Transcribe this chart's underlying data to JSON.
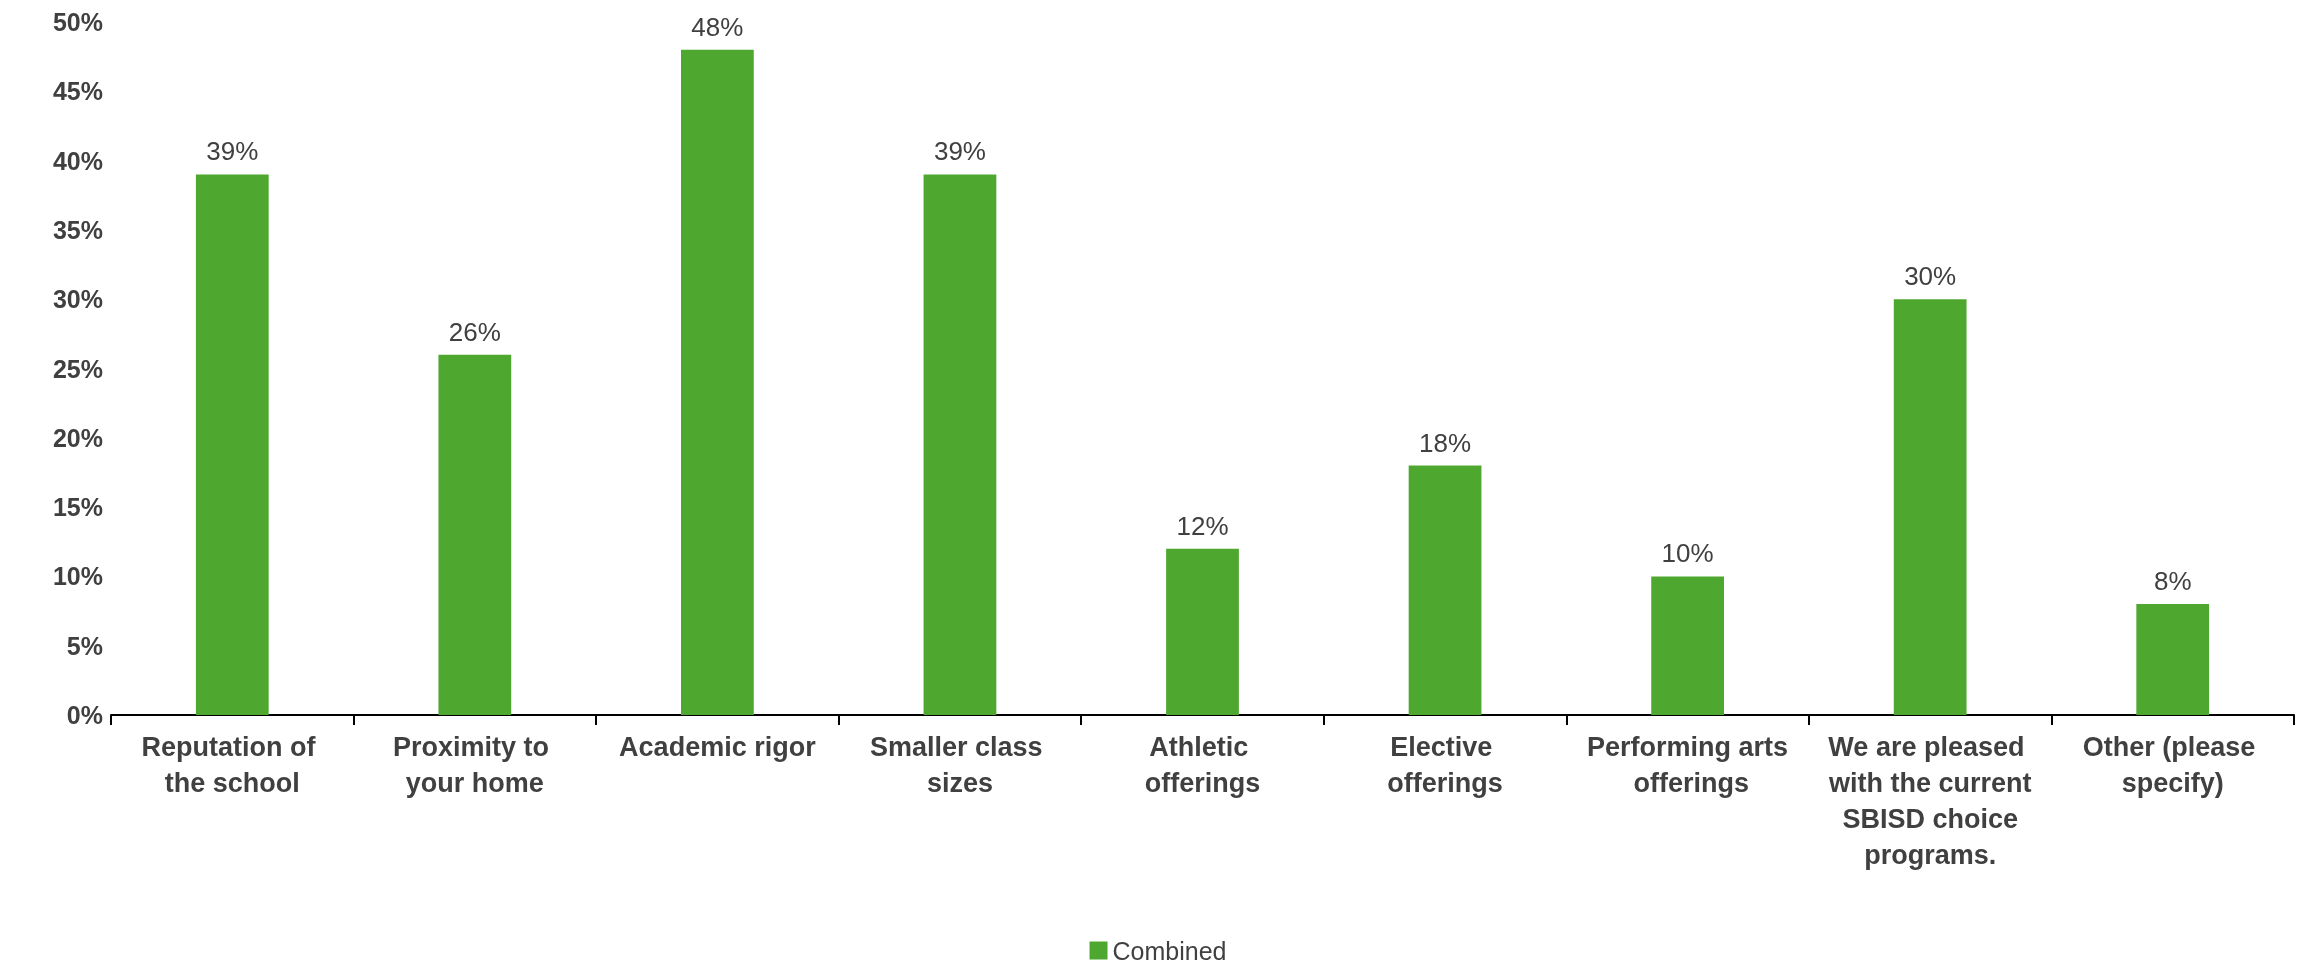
{
  "chart_data": {
    "type": "bar",
    "categories": [
      "Reputation of the school",
      "Proximity to your home",
      "Academic rigor",
      "Smaller class sizes",
      "Athletic offerings",
      "Elective offerings",
      "Performing arts offerings",
      "We are pleased with the current SBISD choice programs.",
      "Other (please specify)"
    ],
    "series": [
      {
        "name": "Combined",
        "color": "#4ea72e",
        "values": [
          39,
          26,
          48,
          39,
          12,
          18,
          10,
          30,
          8
        ],
        "value_labels": [
          "39%",
          "26%",
          "48%",
          "39%",
          "12%",
          "18%",
          "10%",
          "30%",
          "8%"
        ]
      }
    ],
    "ylim": [
      0,
      50
    ],
    "yticks": [
      {
        "value": 0,
        "label": "0%"
      },
      {
        "value": 5,
        "label": "5%"
      },
      {
        "value": 10,
        "label": "10%"
      },
      {
        "value": 15,
        "label": "15%"
      },
      {
        "value": 20,
        "label": "20%"
      },
      {
        "value": 25,
        "label": "25%"
      },
      {
        "value": 30,
        "label": "30%"
      },
      {
        "value": 35,
        "label": "35%"
      },
      {
        "value": 40,
        "label": "40%"
      },
      {
        "value": 45,
        "label": "45%"
      },
      {
        "value": 50,
        "label": "50%"
      }
    ],
    "grid": false,
    "legend": "bottom"
  }
}
